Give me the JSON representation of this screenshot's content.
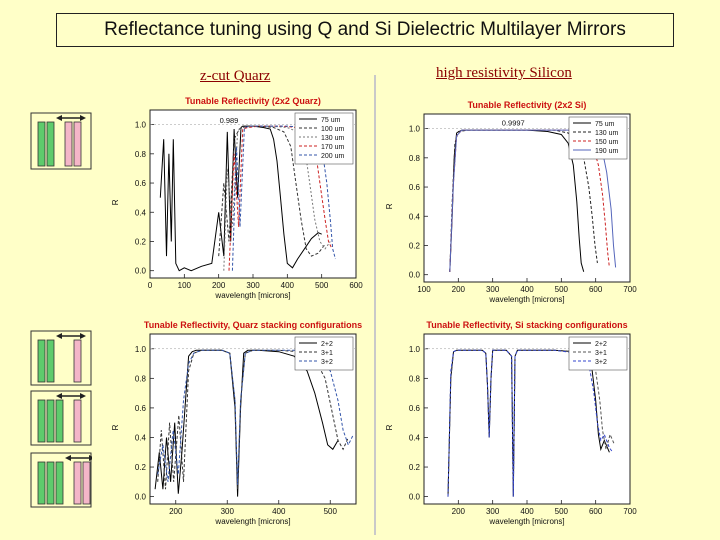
{
  "title": "Reflectance tuning using Q and Si Dielectric Multilayer Mirrors",
  "headers": {
    "left": "z-cut Quarz",
    "right": "high resistivity Silicon"
  },
  "colors": {
    "background": "#ffffc8",
    "title_red": "#cc1111",
    "plate_green": "#5ecb6c",
    "plate_pink": "#f4b6c8",
    "header": "#8b0000"
  },
  "icons": [
    "double-arrow-icon",
    "plate-stack-icon"
  ],
  "chart_data": [
    {
      "id": "quartz-2x2",
      "type": "line",
      "title": "Tunable Reflectivity (2x2 Quarz)",
      "xlabel": "wavelength [microns]",
      "ylabel": "R",
      "xlim": [
        0,
        600
      ],
      "ylim": [
        -0.05,
        1.1
      ],
      "xticks": [
        0,
        100,
        200,
        300,
        400,
        500,
        600
      ],
      "yticks": [
        0.0,
        0.2,
        0.4,
        0.6,
        0.8,
        1.0
      ],
      "annotation": {
        "text": "0.989",
        "x": 230,
        "y": 0.99
      },
      "legend_position": "top-right",
      "series": [
        {
          "name": "75 um",
          "color": "#000000",
          "dash": "none",
          "x": [
            30,
            40,
            48,
            55,
            62,
            68,
            75,
            85,
            100,
            120,
            150,
            180,
            200,
            215,
            225,
            235,
            245,
            255,
            265,
            270,
            300,
            330,
            350,
            360,
            370,
            380,
            390,
            400,
            415,
            430,
            450,
            470,
            490,
            500
          ],
          "y": [
            0.5,
            0.9,
            0.1,
            0.8,
            0.2,
            0.9,
            0.05,
            0.0,
            0.02,
            0.0,
            0.03,
            0.05,
            0.4,
            0.1,
            0.95,
            0.2,
            0.97,
            0.5,
            0.98,
            0.99,
            0.99,
            0.98,
            0.97,
            0.9,
            0.75,
            0.5,
            0.25,
            0.05,
            0.02,
            0.08,
            0.15,
            0.22,
            0.26,
            0.25
          ]
        },
        {
          "name": "100 um",
          "color": "#333333",
          "dash": "3,2",
          "x": [
            200,
            215,
            230,
            245,
            260,
            280,
            320,
            360,
            390,
            410,
            425,
            440,
            455,
            470,
            490,
            510
          ],
          "y": [
            0.1,
            0.6,
            0.2,
            0.9,
            0.97,
            0.99,
            0.99,
            0.98,
            0.95,
            0.85,
            0.6,
            0.35,
            0.15,
            0.1,
            0.12,
            0.18
          ]
        },
        {
          "name": "130 um",
          "color": "#777777",
          "dash": "2,2",
          "x": [
            215,
            225,
            240,
            255,
            270,
            300,
            350,
            400,
            430,
            450,
            465,
            480,
            495,
            510,
            525
          ],
          "y": [
            0.0,
            0.7,
            0.3,
            0.95,
            0.98,
            0.99,
            0.99,
            0.98,
            0.95,
            0.85,
            0.6,
            0.35,
            0.2,
            0.15,
            0.2
          ]
        },
        {
          "name": "170 um",
          "color": "#cc2222",
          "dash": "3,2",
          "x": [
            230,
            245,
            258,
            270,
            285,
            320,
            380,
            430,
            460,
            480,
            495,
            510,
            520,
            530
          ],
          "y": [
            0.0,
            0.8,
            0.3,
            0.97,
            0.98,
            0.99,
            0.99,
            0.98,
            0.95,
            0.85,
            0.6,
            0.35,
            0.2,
            0.15
          ]
        },
        {
          "name": "200 um",
          "color": "#3355aa",
          "dash": "3,2",
          "x": [
            240,
            252,
            262,
            275,
            290,
            330,
            400,
            450,
            480,
            500,
            515,
            525,
            532,
            540
          ],
          "y": [
            0.0,
            0.85,
            0.3,
            0.98,
            0.99,
            0.99,
            0.99,
            0.98,
            0.95,
            0.85,
            0.6,
            0.35,
            0.15,
            0.08
          ]
        }
      ]
    },
    {
      "id": "si-2x2",
      "type": "line",
      "title": "Tunable Reflectivity (2x2 Si)",
      "xlabel": "wavelength [microns]",
      "ylabel": "R",
      "xlim": [
        100,
        700
      ],
      "ylim": [
        -0.05,
        1.1
      ],
      "xticks": [
        100,
        200,
        300,
        400,
        500,
        600,
        700
      ],
      "yticks": [
        0.0,
        0.2,
        0.4,
        0.6,
        0.8,
        1.0
      ],
      "annotation": {
        "text": "0.9997",
        "x": 360,
        "y": 1.0
      },
      "legend_position": "top-right",
      "series": [
        {
          "name": "75 um",
          "color": "#000000",
          "dash": "none",
          "x": [
            175,
            182,
            188,
            195,
            210,
            260,
            320,
            400,
            460,
            500,
            520,
            535,
            545,
            552,
            558,
            565
          ],
          "y": [
            0.02,
            0.4,
            0.8,
            0.97,
            0.99,
            0.99,
            0.99,
            0.99,
            0.98,
            0.96,
            0.9,
            0.75,
            0.5,
            0.25,
            0.08,
            0.02
          ]
        },
        {
          "name": "130 um",
          "color": "#222222",
          "dash": "3,2",
          "x": [
            175,
            182,
            190,
            200,
            230,
            300,
            400,
            480,
            520,
            545,
            565,
            580,
            590,
            598,
            605
          ],
          "y": [
            0.02,
            0.5,
            0.9,
            0.98,
            0.99,
            0.99,
            0.99,
            0.99,
            0.97,
            0.92,
            0.8,
            0.6,
            0.4,
            0.2,
            0.08
          ]
        },
        {
          "name": "150 um",
          "color": "#cc2222",
          "dash": "3,2",
          "x": [
            175,
            185,
            195,
            210,
            260,
            350,
            450,
            520,
            565,
            590,
            608,
            620,
            628,
            635,
            640
          ],
          "y": [
            0.02,
            0.6,
            0.95,
            0.99,
            0.99,
            0.99,
            0.99,
            0.99,
            0.97,
            0.9,
            0.75,
            0.55,
            0.35,
            0.15,
            0.05
          ]
        },
        {
          "name": "190 um",
          "color": "#5566bb",
          "dash": "none",
          "x": [
            175,
            185,
            195,
            210,
            260,
            350,
            450,
            540,
            590,
            615,
            632,
            645,
            652,
            658
          ],
          "y": [
            0.02,
            0.6,
            0.95,
            0.99,
            0.99,
            0.99,
            0.99,
            0.99,
            0.97,
            0.9,
            0.7,
            0.45,
            0.2,
            0.05
          ]
        }
      ]
    },
    {
      "id": "quartz-stacking",
      "type": "line",
      "title": "Tunable Reflectivity, Quarz stacking configurations",
      "xlabel": "wavelength [microns]",
      "ylabel": "R",
      "xlim": [
        150,
        550
      ],
      "ylim": [
        -0.05,
        1.1
      ],
      "xticks": [
        200,
        300,
        400,
        500
      ],
      "yticks": [
        0.0,
        0.2,
        0.4,
        0.6,
        0.8,
        1.0
      ],
      "legend_position": "top-right",
      "series": [
        {
          "name": "2+2",
          "color": "#000000",
          "dash": "none",
          "x": [
            160,
            168,
            175,
            182,
            190,
            198,
            205,
            212,
            218,
            225,
            232,
            240,
            260,
            290,
            305,
            315,
            320,
            326,
            332,
            340,
            360,
            400,
            430,
            455,
            470,
            485,
            495,
            505,
            515
          ],
          "y": [
            0.05,
            0.3,
            0.05,
            0.4,
            0.1,
            0.5,
            0.02,
            0.3,
            0.6,
            0.95,
            0.98,
            0.99,
            0.99,
            0.99,
            0.97,
            0.6,
            0.0,
            0.6,
            0.97,
            0.99,
            0.99,
            0.98,
            0.95,
            0.85,
            0.7,
            0.5,
            0.35,
            0.32,
            0.38
          ]
        },
        {
          "name": "3+1",
          "color": "#333333",
          "dash": "3,2",
          "x": [
            165,
            172,
            180,
            188,
            196,
            206,
            215,
            225,
            235,
            250,
            290,
            305,
            315,
            320,
            326,
            335,
            350,
            400,
            440,
            470,
            490,
            505,
            515,
            525,
            535
          ],
          "y": [
            0.1,
            0.45,
            0.05,
            0.5,
            0.1,
            0.55,
            0.1,
            0.85,
            0.97,
            0.99,
            0.99,
            0.97,
            0.65,
            0.05,
            0.65,
            0.97,
            0.99,
            0.99,
            0.98,
            0.93,
            0.8,
            0.55,
            0.38,
            0.32,
            0.4
          ]
        },
        {
          "name": "3+2",
          "color": "#3355aa",
          "dash": "3,2",
          "x": [
            165,
            175,
            185,
            195,
            205,
            215,
            225,
            235,
            250,
            290,
            305,
            315,
            320,
            326,
            335,
            350,
            400,
            450,
            480,
            500,
            515,
            525,
            535,
            545
          ],
          "y": [
            0.15,
            0.35,
            0.1,
            0.45,
            0.15,
            0.65,
            0.9,
            0.97,
            0.99,
            0.99,
            0.97,
            0.65,
            0.08,
            0.65,
            0.97,
            0.99,
            0.99,
            0.99,
            0.95,
            0.85,
            0.65,
            0.45,
            0.35,
            0.42
          ]
        }
      ]
    },
    {
      "id": "si-stacking",
      "type": "line",
      "title": "Tunable Reflectivity, Si stacking configurations",
      "xlabel": "wavelength [microns]",
      "ylabel": "R",
      "xlim": [
        100,
        700
      ],
      "ylim": [
        -0.05,
        1.1
      ],
      "xticks": [
        200,
        300,
        400,
        500,
        600,
        700
      ],
      "yticks": [
        0.0,
        0.2,
        0.4,
        0.6,
        0.8,
        1.0
      ],
      "legend_position": "top-right",
      "series": [
        {
          "name": "2+2",
          "color": "#000000",
          "dash": "none",
          "x": [
            170,
            178,
            186,
            195,
            230,
            270,
            280,
            285,
            290,
            295,
            300,
            340,
            355,
            360,
            365,
            372,
            400,
            480,
            540,
            575,
            590,
            600,
            608,
            615,
            625,
            640
          ],
          "y": [
            0.0,
            0.8,
            0.98,
            0.99,
            0.99,
            0.99,
            0.97,
            0.75,
            0.4,
            0.8,
            0.99,
            0.99,
            0.95,
            0.0,
            0.95,
            0.99,
            0.99,
            0.99,
            0.98,
            0.95,
            0.85,
            0.65,
            0.42,
            0.32,
            0.38,
            0.3
          ]
        },
        {
          "name": "3+1",
          "color": "#555555",
          "dash": "3,2",
          "x": [
            170,
            178,
            186,
            195,
            230,
            270,
            280,
            285,
            290,
            295,
            300,
            340,
            355,
            360,
            365,
            372,
            400,
            480,
            550,
            585,
            600,
            612,
            620,
            630,
            642,
            655
          ],
          "y": [
            0.0,
            0.8,
            0.98,
            0.99,
            0.99,
            0.99,
            0.97,
            0.75,
            0.45,
            0.8,
            0.99,
            0.99,
            0.95,
            0.05,
            0.95,
            0.99,
            0.99,
            0.99,
            0.98,
            0.95,
            0.85,
            0.65,
            0.45,
            0.32,
            0.42,
            0.35
          ]
        },
        {
          "name": "3+2",
          "color": "#3344cc",
          "dash": "3,2",
          "x": [
            170,
            178,
            186,
            195,
            230,
            270,
            280,
            285,
            290,
            295,
            300,
            340,
            355,
            360,
            365,
            372,
            400,
            480,
            550,
            580,
            595,
            605,
            615,
            625,
            640,
            650
          ],
          "y": [
            0.0,
            0.85,
            0.98,
            0.99,
            0.99,
            0.99,
            0.97,
            0.75,
            0.4,
            0.8,
            0.99,
            0.99,
            0.95,
            0.0,
            0.95,
            0.99,
            0.99,
            0.99,
            0.97,
            0.9,
            0.7,
            0.5,
            0.38,
            0.42,
            0.33,
            0.3
          ]
        }
      ]
    }
  ]
}
